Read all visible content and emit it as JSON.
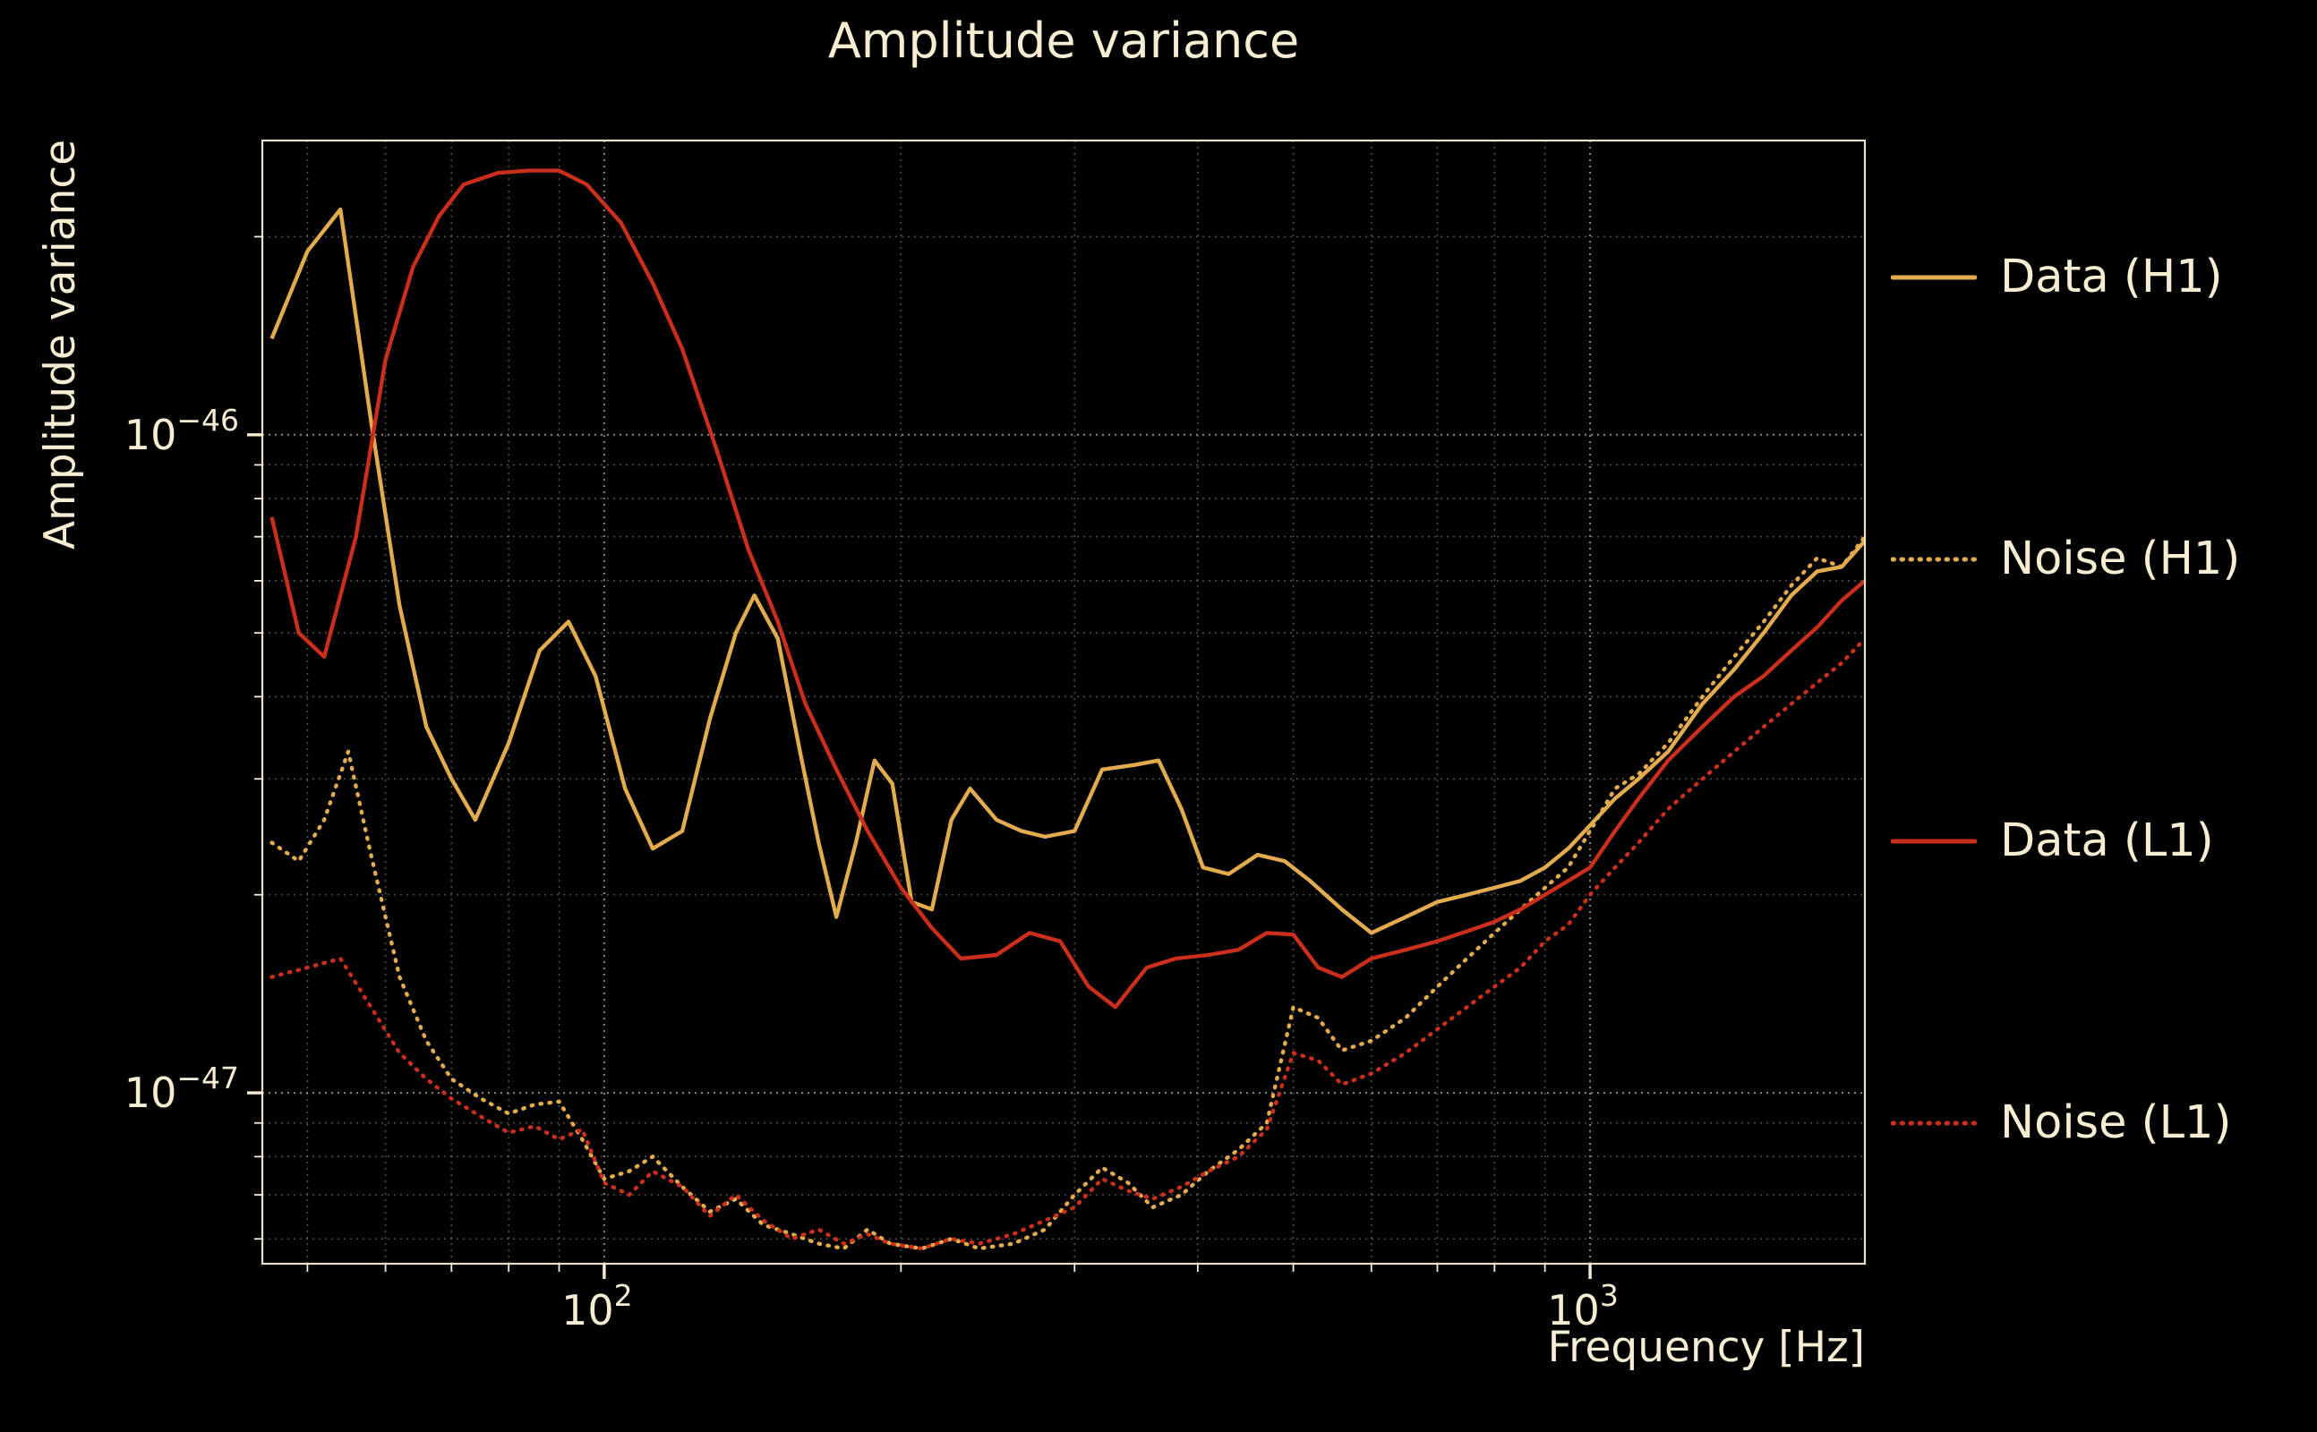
{
  "chart_data": {
    "type": "line",
    "title": "Amplitude variance",
    "xlabel": "Frequency [Hz]",
    "ylabel": "Amplitude variance",
    "xscale": "log",
    "yscale": "log",
    "xlim": [
      45,
      1900
    ],
    "ylim": [
      5.5e-48,
      2.8e-46
    ],
    "grid": true,
    "legend_position": "right-outside",
    "colors": {
      "background": "#000000",
      "text": "#f6edd2",
      "grid": "#d8cfae"
    },
    "x_ticks": [
      {
        "value": 100,
        "label_base": "10",
        "label_exp": "2"
      },
      {
        "value": 1000,
        "label_base": "10",
        "label_exp": "3"
      }
    ],
    "y_ticks": [
      {
        "value": 1e-46,
        "label_base": "10",
        "label_exp": "−46"
      },
      {
        "value": 1e-47,
        "label_base": "10",
        "label_exp": "−47"
      }
    ],
    "series": [
      {
        "name": "Data (H1)",
        "color": "#e2ab4e",
        "style": "solid",
        "points": [
          [
            46,
            1.4e-46
          ],
          [
            50,
            1.9e-46
          ],
          [
            54,
            2.2e-46
          ],
          [
            58,
            1.05e-46
          ],
          [
            62,
            5.5e-47
          ],
          [
            66,
            3.6e-47
          ],
          [
            70,
            3e-47
          ],
          [
            74,
            2.6e-47
          ],
          [
            80,
            3.4e-47
          ],
          [
            86,
            4.7e-47
          ],
          [
            92,
            5.2e-47
          ],
          [
            98,
            4.3e-47
          ],
          [
            105,
            2.9e-47
          ],
          [
            112,
            2.35e-47
          ],
          [
            120,
            2.5e-47
          ],
          [
            128,
            3.7e-47
          ],
          [
            136,
            5e-47
          ],
          [
            142,
            5.7e-47
          ],
          [
            150,
            4.9e-47
          ],
          [
            158,
            3.3e-47
          ],
          [
            165,
            2.4e-47
          ],
          [
            172,
            1.85e-47
          ],
          [
            180,
            2.4e-47
          ],
          [
            188,
            3.2e-47
          ],
          [
            196,
            2.95e-47
          ],
          [
            205,
            1.95e-47
          ],
          [
            215,
            1.9e-47
          ],
          [
            225,
            2.6e-47
          ],
          [
            235,
            2.9e-47
          ],
          [
            250,
            2.6e-47
          ],
          [
            265,
            2.5e-47
          ],
          [
            280,
            2.45e-47
          ],
          [
            300,
            2.5e-47
          ],
          [
            320,
            3.1e-47
          ],
          [
            345,
            3.15e-47
          ],
          [
            365,
            3.2e-47
          ],
          [
            385,
            2.7e-47
          ],
          [
            405,
            2.2e-47
          ],
          [
            430,
            2.15e-47
          ],
          [
            460,
            2.3e-47
          ],
          [
            490,
            2.25e-47
          ],
          [
            520,
            2.1e-47
          ],
          [
            560,
            1.9e-47
          ],
          [
            600,
            1.75e-47
          ],
          [
            650,
            1.85e-47
          ],
          [
            700,
            1.95e-47
          ],
          [
            750,
            2e-47
          ],
          [
            800,
            2.05e-47
          ],
          [
            850,
            2.1e-47
          ],
          [
            900,
            2.2e-47
          ],
          [
            950,
            2.35e-47
          ],
          [
            1000,
            2.55e-47
          ],
          [
            1060,
            2.8e-47
          ],
          [
            1120,
            3e-47
          ],
          [
            1200,
            3.3e-47
          ],
          [
            1300,
            3.9e-47
          ],
          [
            1400,
            4.4e-47
          ],
          [
            1500,
            5e-47
          ],
          [
            1600,
            5.7e-47
          ],
          [
            1700,
            6.2e-47
          ],
          [
            1800,
            6.3e-47
          ],
          [
            1900,
            6.9e-47
          ]
        ]
      },
      {
        "name": "Noise (H1)",
        "color": "#e2ab4e",
        "style": "dotted",
        "points": [
          [
            46,
            2.4e-47
          ],
          [
            49,
            2.25e-47
          ],
          [
            52,
            2.6e-47
          ],
          [
            55,
            3.3e-47
          ],
          [
            58,
            2.3e-47
          ],
          [
            62,
            1.5e-47
          ],
          [
            66,
            1.2e-47
          ],
          [
            70,
            1.05e-47
          ],
          [
            75,
            9.8e-48
          ],
          [
            80,
            9.3e-48
          ],
          [
            85,
            9.6e-48
          ],
          [
            90,
            9.7e-48
          ],
          [
            95,
            8.5e-48
          ],
          [
            100,
            7.4e-48
          ],
          [
            106,
            7.6e-48
          ],
          [
            112,
            8e-48
          ],
          [
            120,
            7.2e-48
          ],
          [
            128,
            6.6e-48
          ],
          [
            136,
            6.9e-48
          ],
          [
            145,
            6.3e-48
          ],
          [
            155,
            6.1e-48
          ],
          [
            165,
            5.9e-48
          ],
          [
            175,
            5.8e-48
          ],
          [
            185,
            6.2e-48
          ],
          [
            195,
            5.9e-48
          ],
          [
            210,
            5.8e-48
          ],
          [
            225,
            6e-48
          ],
          [
            240,
            5.8e-48
          ],
          [
            260,
            5.9e-48
          ],
          [
            280,
            6.2e-48
          ],
          [
            300,
            7e-48
          ],
          [
            320,
            7.7e-48
          ],
          [
            340,
            7.3e-48
          ],
          [
            360,
            6.7e-48
          ],
          [
            385,
            7e-48
          ],
          [
            410,
            7.6e-48
          ],
          [
            440,
            8.2e-48
          ],
          [
            470,
            9e-48
          ],
          [
            500,
            1.35e-47
          ],
          [
            530,
            1.3e-47
          ],
          [
            560,
            1.16e-47
          ],
          [
            600,
            1.2e-47
          ],
          [
            650,
            1.3e-47
          ],
          [
            700,
            1.45e-47
          ],
          [
            750,
            1.6e-47
          ],
          [
            800,
            1.75e-47
          ],
          [
            850,
            1.9e-47
          ],
          [
            900,
            2.05e-47
          ],
          [
            950,
            2.2e-47
          ],
          [
            1000,
            2.5e-47
          ],
          [
            1060,
            2.9e-47
          ],
          [
            1120,
            3.05e-47
          ],
          [
            1200,
            3.4e-47
          ],
          [
            1300,
            4e-47
          ],
          [
            1400,
            4.6e-47
          ],
          [
            1500,
            5.2e-47
          ],
          [
            1600,
            5.9e-47
          ],
          [
            1700,
            6.5e-47
          ],
          [
            1800,
            6.3e-47
          ],
          [
            1900,
            7e-47
          ]
        ]
      },
      {
        "name": "Data (L1)",
        "color": "#c92f1c",
        "style": "solid",
        "points": [
          [
            46,
            7.5e-47
          ],
          [
            49,
            5e-47
          ],
          [
            52,
            4.6e-47
          ],
          [
            56,
            7e-47
          ],
          [
            60,
            1.3e-46
          ],
          [
            64,
            1.8e-46
          ],
          [
            68,
            2.15e-46
          ],
          [
            72,
            2.4e-46
          ],
          [
            78,
            2.5e-46
          ],
          [
            84,
            2.52e-46
          ],
          [
            90,
            2.52e-46
          ],
          [
            96,
            2.4e-46
          ],
          [
            104,
            2.1e-46
          ],
          [
            112,
            1.7e-46
          ],
          [
            120,
            1.35e-46
          ],
          [
            130,
            9.5e-47
          ],
          [
            140,
            6.7e-47
          ],
          [
            150,
            5.2e-47
          ],
          [
            160,
            3.9e-47
          ],
          [
            172,
            3.1e-47
          ],
          [
            185,
            2.5e-47
          ],
          [
            200,
            2.05e-47
          ],
          [
            215,
            1.78e-47
          ],
          [
            230,
            1.6e-47
          ],
          [
            250,
            1.62e-47
          ],
          [
            270,
            1.75e-47
          ],
          [
            290,
            1.7e-47
          ],
          [
            310,
            1.45e-47
          ],
          [
            330,
            1.35e-47
          ],
          [
            355,
            1.55e-47
          ],
          [
            380,
            1.6e-47
          ],
          [
            410,
            1.62e-47
          ],
          [
            440,
            1.65e-47
          ],
          [
            470,
            1.75e-47
          ],
          [
            500,
            1.74e-47
          ],
          [
            530,
            1.55e-47
          ],
          [
            560,
            1.5e-47
          ],
          [
            600,
            1.6e-47
          ],
          [
            650,
            1.65e-47
          ],
          [
            700,
            1.7e-47
          ],
          [
            750,
            1.76e-47
          ],
          [
            800,
            1.82e-47
          ],
          [
            850,
            1.9e-47
          ],
          [
            900,
            2e-47
          ],
          [
            950,
            2.1e-47
          ],
          [
            1000,
            2.2e-47
          ],
          [
            1060,
            2.5e-47
          ],
          [
            1120,
            2.8e-47
          ],
          [
            1200,
            3.2e-47
          ],
          [
            1300,
            3.6e-47
          ],
          [
            1400,
            4e-47
          ],
          [
            1500,
            4.3e-47
          ],
          [
            1600,
            4.7e-47
          ],
          [
            1700,
            5.1e-47
          ],
          [
            1800,
            5.6e-47
          ],
          [
            1900,
            6e-47
          ]
        ]
      },
      {
        "name": "Noise (L1)",
        "color": "#c92f1c",
        "style": "dotted",
        "points": [
          [
            46,
            1.5e-47
          ],
          [
            50,
            1.55e-47
          ],
          [
            54,
            1.6e-47
          ],
          [
            58,
            1.35e-47
          ],
          [
            62,
            1.15e-47
          ],
          [
            66,
            1.05e-47
          ],
          [
            70,
            9.8e-48
          ],
          [
            75,
            9.2e-48
          ],
          [
            80,
            8.7e-48
          ],
          [
            85,
            8.9e-48
          ],
          [
            90,
            8.5e-48
          ],
          [
            95,
            8.8e-48
          ],
          [
            100,
            7.3e-48
          ],
          [
            106,
            7e-48
          ],
          [
            112,
            7.6e-48
          ],
          [
            120,
            7.2e-48
          ],
          [
            128,
            6.5e-48
          ],
          [
            136,
            7e-48
          ],
          [
            145,
            6.4e-48
          ],
          [
            155,
            6e-48
          ],
          [
            165,
            6.2e-48
          ],
          [
            175,
            5.9e-48
          ],
          [
            185,
            6.1e-48
          ],
          [
            195,
            5.9e-48
          ],
          [
            210,
            5.8e-48
          ],
          [
            225,
            6e-48
          ],
          [
            240,
            5.9e-48
          ],
          [
            260,
            6.1e-48
          ],
          [
            280,
            6.4e-48
          ],
          [
            300,
            6.7e-48
          ],
          [
            320,
            7.4e-48
          ],
          [
            340,
            7.1e-48
          ],
          [
            360,
            6.9e-48
          ],
          [
            385,
            7.2e-48
          ],
          [
            410,
            7.6e-48
          ],
          [
            440,
            8e-48
          ],
          [
            470,
            8.8e-48
          ],
          [
            500,
            1.15e-47
          ],
          [
            530,
            1.12e-47
          ],
          [
            560,
            1.03e-47
          ],
          [
            600,
            1.07e-47
          ],
          [
            650,
            1.15e-47
          ],
          [
            700,
            1.25e-47
          ],
          [
            750,
            1.35e-47
          ],
          [
            800,
            1.45e-47
          ],
          [
            850,
            1.55e-47
          ],
          [
            900,
            1.7e-47
          ],
          [
            950,
            1.8e-47
          ],
          [
            1000,
            2e-47
          ],
          [
            1060,
            2.2e-47
          ],
          [
            1120,
            2.4e-47
          ],
          [
            1200,
            2.7e-47
          ],
          [
            1300,
            3e-47
          ],
          [
            1400,
            3.3e-47
          ],
          [
            1500,
            3.6e-47
          ],
          [
            1600,
            3.9e-47
          ],
          [
            1700,
            4.2e-47
          ],
          [
            1800,
            4.5e-47
          ],
          [
            1900,
            4.9e-47
          ]
        ]
      }
    ]
  }
}
